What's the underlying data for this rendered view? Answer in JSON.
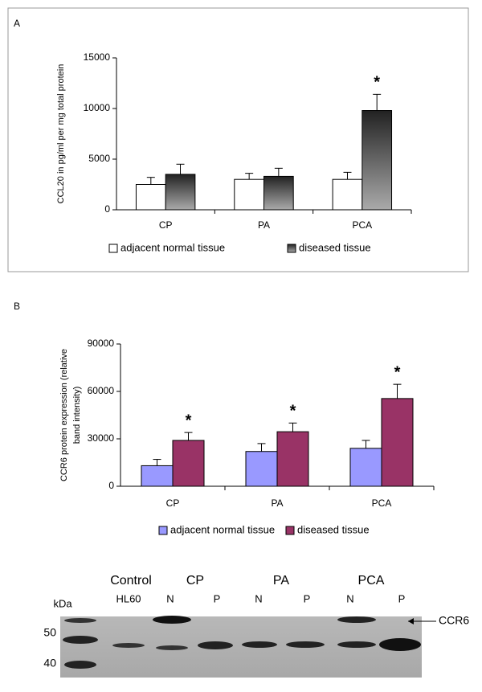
{
  "chart_data": [
    {
      "type": "bar",
      "panel_label": "A",
      "ylabel": [
        "CCL20 in pg/ml per mg total protein"
      ],
      "categories": [
        "CP",
        "PA",
        "PCA"
      ],
      "series": [
        {
          "name": "adjacent normal tissue",
          "color": "#ffffff",
          "values": [
            2500,
            3000,
            3000
          ],
          "errors": [
            700,
            600,
            700
          ],
          "significant": [
            false,
            false,
            false
          ]
        },
        {
          "name": "diseased tissue",
          "color": "#333333",
          "gradient": true,
          "values": [
            3500,
            3300,
            9800
          ],
          "errors": [
            1000,
            800,
            1600
          ],
          "significant": [
            false,
            false,
            true
          ]
        }
      ],
      "significance_label": "*",
      "ylim": [
        0,
        15000
      ],
      "yticks": [
        0,
        5000,
        10000,
        15000
      ],
      "frame": true
    },
    {
      "type": "bar",
      "panel_label": "B",
      "ylabel": [
        "CCR6 protein expression (relative",
        "band intensity)"
      ],
      "categories": [
        "CP",
        "PA",
        "PCA"
      ],
      "series": [
        {
          "name": "adjacent normal tissue",
          "color": "#9999ff",
          "values": [
            13000,
            22000,
            24000
          ],
          "errors": [
            4000,
            5000,
            5000
          ],
          "significant": [
            false,
            false,
            false
          ]
        },
        {
          "name": "diseased tissue",
          "color": "#993366",
          "values": [
            29000,
            34500,
            55500
          ],
          "errors": [
            5000,
            5500,
            9000
          ],
          "significant": [
            true,
            true,
            true
          ]
        }
      ],
      "significance_label": "*",
      "ylim": [
        0,
        90000
      ],
      "yticks": [
        0,
        30000,
        60000,
        90000
      ],
      "frame": false
    }
  ],
  "blot": {
    "groups": [
      {
        "label": "Control",
        "lanes": [
          "HL60"
        ]
      },
      {
        "label": "CP",
        "lanes": [
          "N",
          "P"
        ]
      },
      {
        "label": "PA",
        "lanes": [
          "N",
          "P"
        ]
      },
      {
        "label": "PCA",
        "lanes": [
          "N",
          "P"
        ]
      }
    ],
    "kda_label": "kDa",
    "markers": [
      50,
      40
    ],
    "target": "CCR6"
  }
}
